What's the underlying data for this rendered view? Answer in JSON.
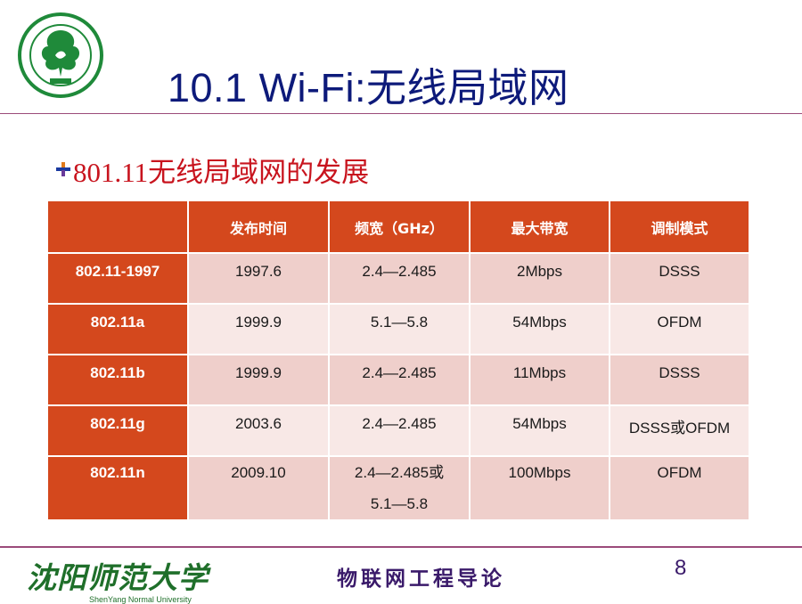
{
  "slide": {
    "title": "10.1   Wi-Fi:无线局域网",
    "subtitle": "801.11无线局域网的发展",
    "page_number": "8"
  },
  "logo": {
    "icon": "university-seal-icon",
    "color": "#1f8a3a"
  },
  "table": {
    "headers": [
      "",
      "发布时间",
      "频宽（GHz）",
      "最大带宽",
      "调制模式"
    ],
    "rows": [
      {
        "name": "802.11-1997",
        "date": "1997.6",
        "band": "2.4—2.485",
        "bandwidth": "2Mbps",
        "modulation": "DSSS"
      },
      {
        "name": "802.11a",
        "date": "1999.9",
        "band": "5.1—5.8",
        "bandwidth": "54Mbps",
        "modulation": "OFDM"
      },
      {
        "name": "802.11b",
        "date": "1999.9",
        "band": "2.4—2.485",
        "bandwidth": "11Mbps",
        "modulation": "DSSS"
      },
      {
        "name": "802.11g",
        "date": "2003.6",
        "band": "2.4—2.485",
        "bandwidth": "54Mbps",
        "modulation": "DSSS或OFDM"
      },
      {
        "name": "802.11n",
        "date": "2009.10",
        "band_line1": "2.4—2.485或",
        "band_line2": "5.1—5.8",
        "bandwidth": "100Mbps",
        "modulation": "OFDM"
      }
    ]
  },
  "footer": {
    "university_cn": "沈阳师范大学",
    "university_en": "ShenYang Normal University",
    "course": "物联网工程导论"
  },
  "colors": {
    "title": "#0d1a7a",
    "accent": "#d4481d",
    "subtitle": "#c8141e",
    "footer_green": "#1f6f2a",
    "rule": "#9b4b7a"
  }
}
